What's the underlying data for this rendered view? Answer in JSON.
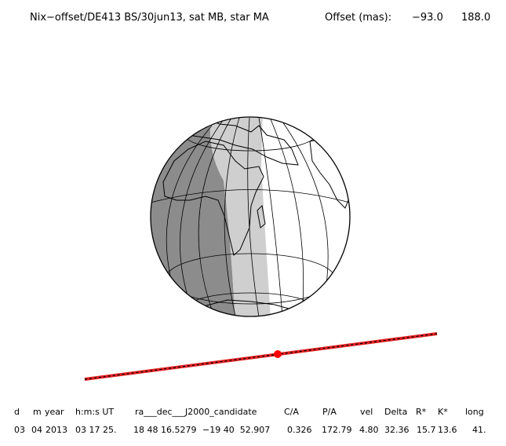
{
  "header": {
    "title": "Nix−offset/DE413 BS/30jun13, sat MB, star MA",
    "offset_label": "Offset (mas):",
    "offset_x": "−93.0",
    "offset_y": "188.0"
  },
  "table": {
    "columns": [
      "d",
      "m",
      "year",
      "h:m:s UT",
      "ra___dec___J2000_candidate",
      "C/A",
      "P/A",
      "vel",
      "Delta",
      "R*",
      "K*",
      "long"
    ],
    "values": [
      "03",
      "04",
      "2013",
      "03 17 25.",
      "18 48 16.5279",
      "−19 40  52.907",
      "0.326",
      "172.79",
      "4.80",
      "32.36",
      "15.7",
      "13.6",
      "41."
    ]
  }
}
